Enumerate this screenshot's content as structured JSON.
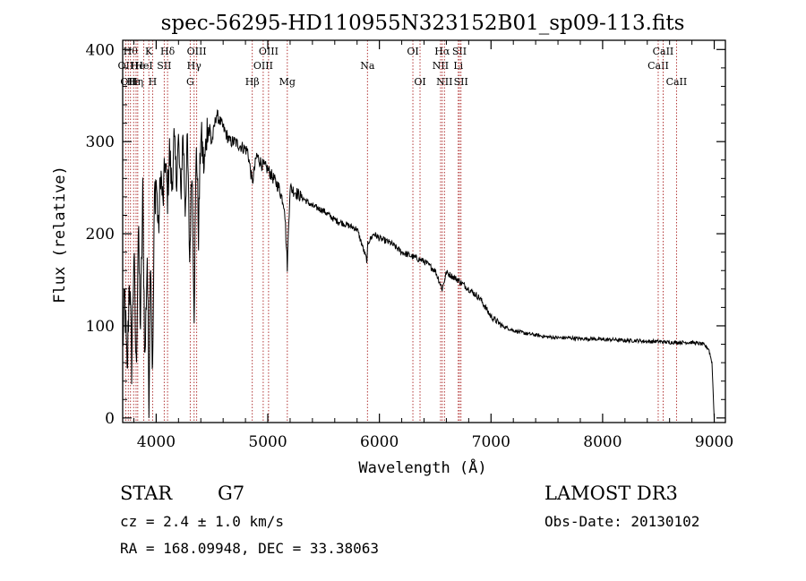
{
  "chart_data": {
    "type": "line",
    "title": "spec-56295-HD110955N323152B01_sp09-113.fits",
    "xlabel": "Wavelength (Å)",
    "ylabel": "Flux (relative)",
    "xlim": [
      3700,
      9100
    ],
    "ylim": [
      -5,
      410
    ],
    "xticks": [
      4000,
      5000,
      6000,
      7000,
      8000,
      9000
    ],
    "yticks": [
      0,
      100,
      200,
      300,
      400
    ],
    "grid": false,
    "line_color": "#000000",
    "marker_color": "#aa2222",
    "series": [
      {
        "name": "Flux",
        "x": [
          3700,
          3720,
          3740,
          3760,
          3780,
          3800,
          3820,
          3840,
          3860,
          3880,
          3900,
          3920,
          3935,
          3950,
          3968,
          3985,
          4000,
          4020,
          4040,
          4060,
          4080,
          4102,
          4120,
          4140,
          4160,
          4180,
          4200,
          4220,
          4240,
          4260,
          4280,
          4300,
          4320,
          4340,
          4360,
          4380,
          4400,
          4430,
          4460,
          4500,
          4540,
          4580,
          4620,
          4660,
          4700,
          4760,
          4820,
          4861,
          4900,
          4950,
          5000,
          5050,
          5100,
          5150,
          5167,
          5175,
          5184,
          5200,
          5250,
          5300,
          5400,
          5500,
          5600,
          5700,
          5800,
          5890,
          5896,
          5950,
          6000,
          6100,
          6200,
          6300,
          6400,
          6500,
          6563,
          6600,
          6700,
          6800,
          6900,
          7000,
          7100,
          7200,
          7300,
          7400,
          7500,
          7600,
          7700,
          7800,
          7900,
          8000,
          8100,
          8200,
          8300,
          8400,
          8500,
          8600,
          8700,
          8800,
          8900,
          8950,
          8980,
          9000
        ],
        "y": [
          80,
          130,
          40,
          160,
          60,
          180,
          50,
          200,
          100,
          240,
          60,
          180,
          20,
          190,
          40,
          240,
          260,
          200,
          270,
          230,
          280,
          240,
          290,
          250,
          300,
          260,
          300,
          240,
          310,
          230,
          300,
          170,
          280,
          120,
          300,
          200,
          310,
          270,
          320,
          300,
          330,
          320,
          310,
          300,
          300,
          295,
          290,
          255,
          285,
          275,
          270,
          260,
          250,
          230,
          185,
          165,
          200,
          250,
          245,
          240,
          230,
          225,
          215,
          210,
          205,
          170,
          190,
          200,
          195,
          190,
          180,
          175,
          170,
          160,
          140,
          158,
          150,
          140,
          130,
          110,
          100,
          95,
          92,
          90,
          88,
          87,
          87,
          86,
          86,
          85,
          85,
          84,
          84,
          83,
          83,
          82,
          82,
          82,
          80,
          75,
          60,
          0
        ]
      }
    ],
    "line_markers": [
      {
        "wl": 3727,
        "label": "OII",
        "row": 2
      },
      {
        "wl": 3750,
        "label": "OII",
        "row": 3
      },
      {
        "wl": 3770,
        "label": "Hθ",
        "row": 1
      },
      {
        "wl": 3798,
        "label": "Hε",
        "row": 3
      },
      {
        "wl": 3820,
        "label": "Hη",
        "row": 3
      },
      {
        "wl": 3835,
        "label": "He",
        "row": 2
      },
      {
        "wl": 3889,
        "label": "HeI",
        "row": 2
      },
      {
        "wl": 3934,
        "label": "K",
        "row": 1
      },
      {
        "wl": 3968,
        "label": "H",
        "row": 3
      },
      {
        "wl": 4072,
        "label": "SII",
        "row": 2
      },
      {
        "wl": 4102,
        "label": "Hδ",
        "row": 1
      },
      {
        "wl": 4305,
        "label": "G",
        "row": 3
      },
      {
        "wl": 4340,
        "label": "Hγ",
        "row": 2
      },
      {
        "wl": 4363,
        "label": "OIII",
        "row": 1
      },
      {
        "wl": 4861,
        "label": "Hβ",
        "row": 3
      },
      {
        "wl": 4959,
        "label": "OIII",
        "row": 2
      },
      {
        "wl": 5007,
        "label": "OIII",
        "row": 1
      },
      {
        "wl": 5175,
        "label": "Mg",
        "row": 3
      },
      {
        "wl": 5893,
        "label": "Na",
        "row": 2
      },
      {
        "wl": 6300,
        "label": "OI",
        "row": 1
      },
      {
        "wl": 6364,
        "label": "OI",
        "row": 3
      },
      {
        "wl": 6548,
        "label": "NII",
        "row": 2
      },
      {
        "wl": 6563,
        "label": "Hα",
        "row": 1
      },
      {
        "wl": 6583,
        "label": "NII",
        "row": 3
      },
      {
        "wl": 6707,
        "label": "Li",
        "row": 2
      },
      {
        "wl": 6717,
        "label": "SII",
        "row": 1
      },
      {
        "wl": 6731,
        "label": "SII",
        "row": 3
      },
      {
        "wl": 8498,
        "label": "CaII",
        "row": 2
      },
      {
        "wl": 8542,
        "label": "CaII",
        "row": 1
      },
      {
        "wl": 8662,
        "label": "CaII",
        "row": 3
      }
    ]
  },
  "info": {
    "object_type": "STAR",
    "subclass": "G7",
    "survey": "LAMOST DR3",
    "cz": "cz = 2.4 ± 1.0 km/s",
    "obs_date": "Obs-Date: 20130102",
    "coords": "RA = 168.09948, DEC =  33.38063"
  }
}
